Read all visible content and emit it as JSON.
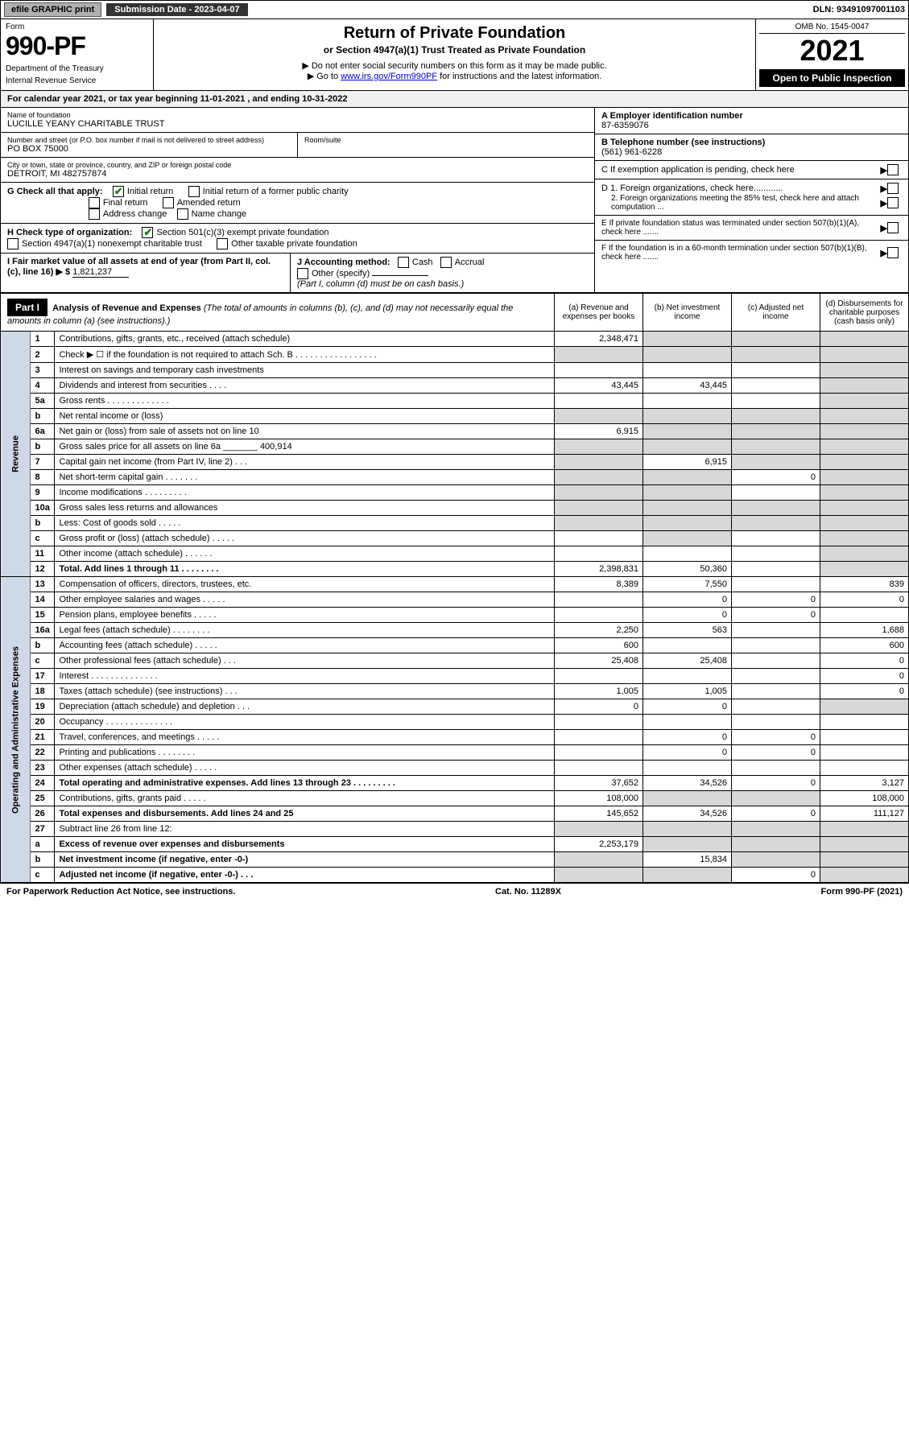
{
  "top": {
    "efile": "efile GRAPHIC print",
    "submission_label": "Submission Date - 2023-04-07",
    "dln": "DLN: 93491097001103"
  },
  "header": {
    "form_label": "Form",
    "form_number": "990-PF",
    "dept1": "Department of the Treasury",
    "dept2": "Internal Revenue Service",
    "title": "Return of Private Foundation",
    "subtitle": "or Section 4947(a)(1) Trust Treated as Private Foundation",
    "note1": "▶ Do not enter social security numbers on this form as it may be made public.",
    "note2_pre": "▶ Go to ",
    "note2_link": "www.irs.gov/Form990PF",
    "note2_post": " for instructions and the latest information.",
    "omb": "OMB No. 1545-0047",
    "year": "2021",
    "open": "Open to Public Inspection"
  },
  "calendar": {
    "pre": "For calendar year 2021, or tax year beginning ",
    "begin": "11-01-2021",
    "mid": " , and ending ",
    "end": "10-31-2022"
  },
  "foundation": {
    "name_label": "Name of foundation",
    "name": "LUCILLE YEANY CHARITABLE TRUST",
    "addr_label": "Number and street (or P.O. box number if mail is not delivered to street address)",
    "addr": "PO BOX 75000",
    "room_label": "Room/suite",
    "room": "",
    "city_label": "City or town, state or province, country, and ZIP or foreign postal code",
    "city": "DETROIT, MI  482757874"
  },
  "right_info": {
    "a_label": "A Employer identification number",
    "a_val": "87-6359076",
    "b_label": "B Telephone number (see instructions)",
    "b_val": "(561) 961-6228",
    "c_label": "C If exemption application is pending, check here",
    "d1": "D 1. Foreign organizations, check here............",
    "d2": "2. Foreign organizations meeting the 85% test, check here and attach computation ...",
    "e": "E If private foundation status was terminated under section 507(b)(1)(A), check here .......",
    "f": "F If the foundation is in a 60-month termination under section 507(b)(1)(B), check here ......."
  },
  "g": {
    "label": "G Check all that apply:",
    "opt1": "Initial return",
    "opt1_checked": true,
    "opt2": "Initial return of a former public charity",
    "opt3": "Final return",
    "opt4": "Amended return",
    "opt5": "Address change",
    "opt6": "Name change"
  },
  "h": {
    "label": "H Check type of organization:",
    "opt1": "Section 501(c)(3) exempt private foundation",
    "opt1_checked": true,
    "opt2": "Section 4947(a)(1) nonexempt charitable trust",
    "opt3": "Other taxable private foundation"
  },
  "i": {
    "label": "I Fair market value of all assets at end of year (from Part II, col. (c), line 16)",
    "arrow": "▶ $",
    "val": "1,821,237"
  },
  "j": {
    "label": "J Accounting method:",
    "cash": "Cash",
    "accrual": "Accrual",
    "other": "Other (specify)",
    "note": "(Part I, column (d) must be on cash basis.)"
  },
  "part1": {
    "label": "Part I",
    "title": "Analysis of Revenue and Expenses",
    "subtitle": "(The total of amounts in columns (b), (c), and (d) may not necessarily equal the amounts in column (a) (see instructions).)",
    "col_a": "(a) Revenue and expenses per books",
    "col_b": "(b) Net investment income",
    "col_c": "(c) Adjusted net income",
    "col_d": "(d) Disbursements for charitable purposes (cash basis only)",
    "side_revenue": "Revenue",
    "side_expenses": "Operating and Administrative Expenses"
  },
  "rows": [
    {
      "n": "1",
      "desc": "Contributions, gifts, grants, etc., received (attach schedule)",
      "a": "2,348,471",
      "b": "",
      "c": "",
      "d": "",
      "shade_b": true,
      "shade_c": true,
      "shade_d": true
    },
    {
      "n": "2",
      "desc": "Check ▶ ☐ if the foundation is not required to attach Sch. B  . . . . . . . . . . . . . . . . .",
      "a": "",
      "b": "",
      "c": "",
      "d": "",
      "allshade": true
    },
    {
      "n": "3",
      "desc": "Interest on savings and temporary cash investments",
      "a": "",
      "b": "",
      "c": "",
      "d": "",
      "shade_d": true
    },
    {
      "n": "4",
      "desc": "Dividends and interest from securities  . . . .",
      "a": "43,445",
      "b": "43,445",
      "c": "",
      "d": "",
      "shade_d": true
    },
    {
      "n": "5a",
      "desc": "Gross rents  . . . . . . . . . . . . .",
      "a": "",
      "b": "",
      "c": "",
      "d": "",
      "shade_d": true
    },
    {
      "n": "b",
      "desc": "Net rental income or (loss)",
      "a": "",
      "b": "",
      "c": "",
      "d": "",
      "allshade": true
    },
    {
      "n": "6a",
      "desc": "Net gain or (loss) from sale of assets not on line 10",
      "a": "6,915",
      "b": "",
      "c": "",
      "d": "",
      "shade_b": true,
      "shade_c": true,
      "shade_d": true
    },
    {
      "n": "b",
      "desc": "Gross sales price for all assets on line 6a _______ 400,914",
      "a": "",
      "b": "",
      "c": "",
      "d": "",
      "allshade": true
    },
    {
      "n": "7",
      "desc": "Capital gain net income (from Part IV, line 2)  . . .",
      "a": "",
      "b": "6,915",
      "c": "",
      "d": "",
      "shade_a": true,
      "shade_c": true,
      "shade_d": true
    },
    {
      "n": "8",
      "desc": "Net short-term capital gain  . . . . . . .",
      "a": "",
      "b": "",
      "c": "0",
      "d": "",
      "shade_a": true,
      "shade_b": true,
      "shade_d": true
    },
    {
      "n": "9",
      "desc": "Income modifications  . . . . . . . . .",
      "a": "",
      "b": "",
      "c": "",
      "d": "",
      "shade_a": true,
      "shade_b": true,
      "shade_d": true
    },
    {
      "n": "10a",
      "desc": "Gross sales less returns and allowances",
      "a": "",
      "b": "",
      "c": "",
      "d": "",
      "allshade": true
    },
    {
      "n": "b",
      "desc": "Less: Cost of goods sold  . . . . .",
      "a": "",
      "b": "",
      "c": "",
      "d": "",
      "allshade": true
    },
    {
      "n": "c",
      "desc": "Gross profit or (loss) (attach schedule)  . . . . .",
      "a": "",
      "b": "",
      "c": "",
      "d": "",
      "shade_b": true,
      "shade_d": true
    },
    {
      "n": "11",
      "desc": "Other income (attach schedule)  . . . . . .",
      "a": "",
      "b": "",
      "c": "",
      "d": "",
      "shade_d": true
    },
    {
      "n": "12",
      "desc": "Total. Add lines 1 through 11  . . . . . . . .",
      "a": "2,398,831",
      "b": "50,360",
      "c": "",
      "d": "",
      "bold": true,
      "shade_d": true
    },
    {
      "n": "13",
      "desc": "Compensation of officers, directors, trustees, etc.",
      "a": "8,389",
      "b": "7,550",
      "c": "",
      "d": "839"
    },
    {
      "n": "14",
      "desc": "Other employee salaries and wages  . . . . .",
      "a": "",
      "b": "0",
      "c": "0",
      "d": "0"
    },
    {
      "n": "15",
      "desc": "Pension plans, employee benefits  . . . . .",
      "a": "",
      "b": "0",
      "c": "0",
      "d": ""
    },
    {
      "n": "16a",
      "desc": "Legal fees (attach schedule)  . . . . . . . .",
      "a": "2,250",
      "b": "563",
      "c": "",
      "d": "1,688"
    },
    {
      "n": "b",
      "desc": "Accounting fees (attach schedule)  . . . . .",
      "a": "600",
      "b": "",
      "c": "",
      "d": "600"
    },
    {
      "n": "c",
      "desc": "Other professional fees (attach schedule)  . . .",
      "a": "25,408",
      "b": "25,408",
      "c": "",
      "d": "0"
    },
    {
      "n": "17",
      "desc": "Interest  . . . . . . . . . . . . . .",
      "a": "",
      "b": "",
      "c": "",
      "d": "0"
    },
    {
      "n": "18",
      "desc": "Taxes (attach schedule) (see instructions)  . . .",
      "a": "1,005",
      "b": "1,005",
      "c": "",
      "d": "0"
    },
    {
      "n": "19",
      "desc": "Depreciation (attach schedule) and depletion  . . .",
      "a": "0",
      "b": "0",
      "c": "",
      "d": "",
      "shade_d": true
    },
    {
      "n": "20",
      "desc": "Occupancy  . . . . . . . . . . . . . .",
      "a": "",
      "b": "",
      "c": "",
      "d": ""
    },
    {
      "n": "21",
      "desc": "Travel, conferences, and meetings  . . . . .",
      "a": "",
      "b": "0",
      "c": "0",
      "d": ""
    },
    {
      "n": "22",
      "desc": "Printing and publications  . . . . . . . .",
      "a": "",
      "b": "0",
      "c": "0",
      "d": ""
    },
    {
      "n": "23",
      "desc": "Other expenses (attach schedule)  . . . . .",
      "a": "",
      "b": "",
      "c": "",
      "d": ""
    },
    {
      "n": "24",
      "desc": "Total operating and administrative expenses. Add lines 13 through 23  . . . . . . . . .",
      "a": "37,652",
      "b": "34,526",
      "c": "0",
      "d": "3,127",
      "bold": true
    },
    {
      "n": "25",
      "desc": "Contributions, gifts, grants paid  . . . . .",
      "a": "108,000",
      "b": "",
      "c": "",
      "d": "108,000",
      "shade_b": true,
      "shade_c": true
    },
    {
      "n": "26",
      "desc": "Total expenses and disbursements. Add lines 24 and 25",
      "a": "145,652",
      "b": "34,526",
      "c": "0",
      "d": "111,127",
      "bold": true
    },
    {
      "n": "27",
      "desc": "Subtract line 26 from line 12:",
      "a": "",
      "b": "",
      "c": "",
      "d": "",
      "shade_a": true,
      "shade_b": true,
      "shade_c": true,
      "shade_d": true
    },
    {
      "n": "a",
      "desc": "Excess of revenue over expenses and disbursements",
      "a": "2,253,179",
      "b": "",
      "c": "",
      "d": "",
      "bold": true,
      "shade_b": true,
      "shade_c": true,
      "shade_d": true
    },
    {
      "n": "b",
      "desc": "Net investment income (if negative, enter -0-)",
      "a": "",
      "b": "15,834",
      "c": "",
      "d": "",
      "bold": true,
      "shade_a": true,
      "shade_c": true,
      "shade_d": true
    },
    {
      "n": "c",
      "desc": "Adjusted net income (if negative, enter -0-)  . . .",
      "a": "",
      "b": "",
      "c": "0",
      "d": "",
      "bold": true,
      "shade_a": true,
      "shade_b": true,
      "shade_d": true
    }
  ],
  "footer": {
    "left": "For Paperwork Reduction Act Notice, see instructions.",
    "mid": "Cat. No. 11289X",
    "right": "Form 990-PF (2021)"
  }
}
